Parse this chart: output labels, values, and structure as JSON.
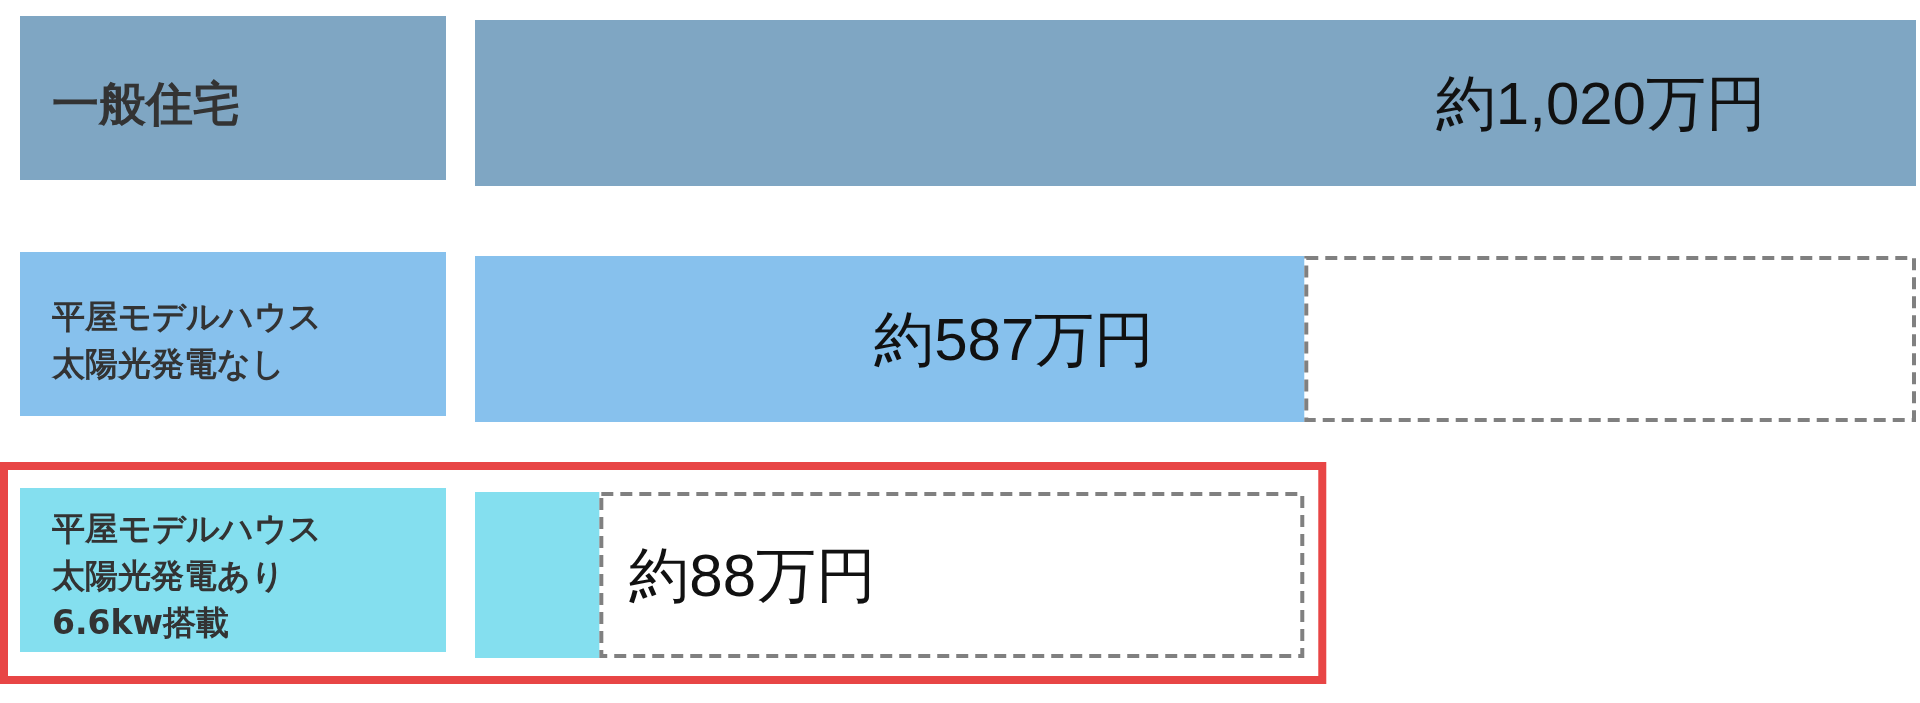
{
  "chart_data": {
    "type": "bar",
    "orientation": "horizontal",
    "stacked": true,
    "tick_labels": "y",
    "categories": [
      "一般住宅",
      "平屋モデルハウス太陽光発電なし",
      "平屋モデルハウス太陽光発電あり6.6kw搭載"
    ],
    "series": [
      {
        "colors": [
          "#7fa6c3",
          "#87c1ed",
          "#84dfef"
        ],
        "values": [
          1020,
          587,
          88
        ],
        "value_labels": [
          "約1,020万円",
          "約587万円",
          "約88万円"
        ]
      },
      {
        "color": "#808080",
        "line_style": "dashed",
        "values": [
          null,
          433,
          499
        ]
      }
    ]
  }
}
